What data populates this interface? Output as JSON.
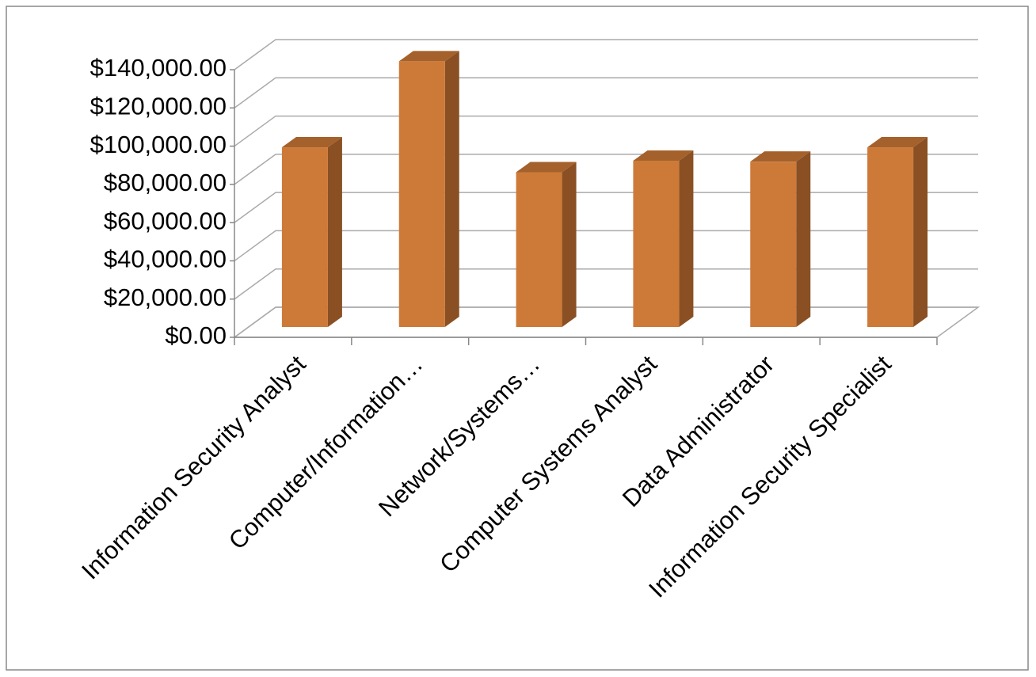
{
  "chart_data": {
    "type": "bar3d",
    "categories": [
      "Information Security Analyst",
      "Computer/Information…",
      "Network/Systems…",
      "Computer Systems Analyst",
      "Data Administrator",
      "Information Security Specialist"
    ],
    "values": [
      94000,
      139000,
      81000,
      87000,
      86500,
      94000
    ],
    "color": "#cd7a38",
    "ylim": [
      0,
      140000
    ],
    "yticks": [
      {
        "value": 0,
        "label": "$0.00"
      },
      {
        "value": 20000,
        "label": "$20,000.00"
      },
      {
        "value": 40000,
        "label": "$40,000.00"
      },
      {
        "value": 60000,
        "label": "$60,000.00"
      },
      {
        "value": 80000,
        "label": "$80,000.00"
      },
      {
        "value": 100000,
        "label": "$100,000.00"
      },
      {
        "value": 120000,
        "label": "$120,000.00"
      },
      {
        "value": 140000,
        "label": "$140,000.00"
      }
    ],
    "grid": true
  }
}
